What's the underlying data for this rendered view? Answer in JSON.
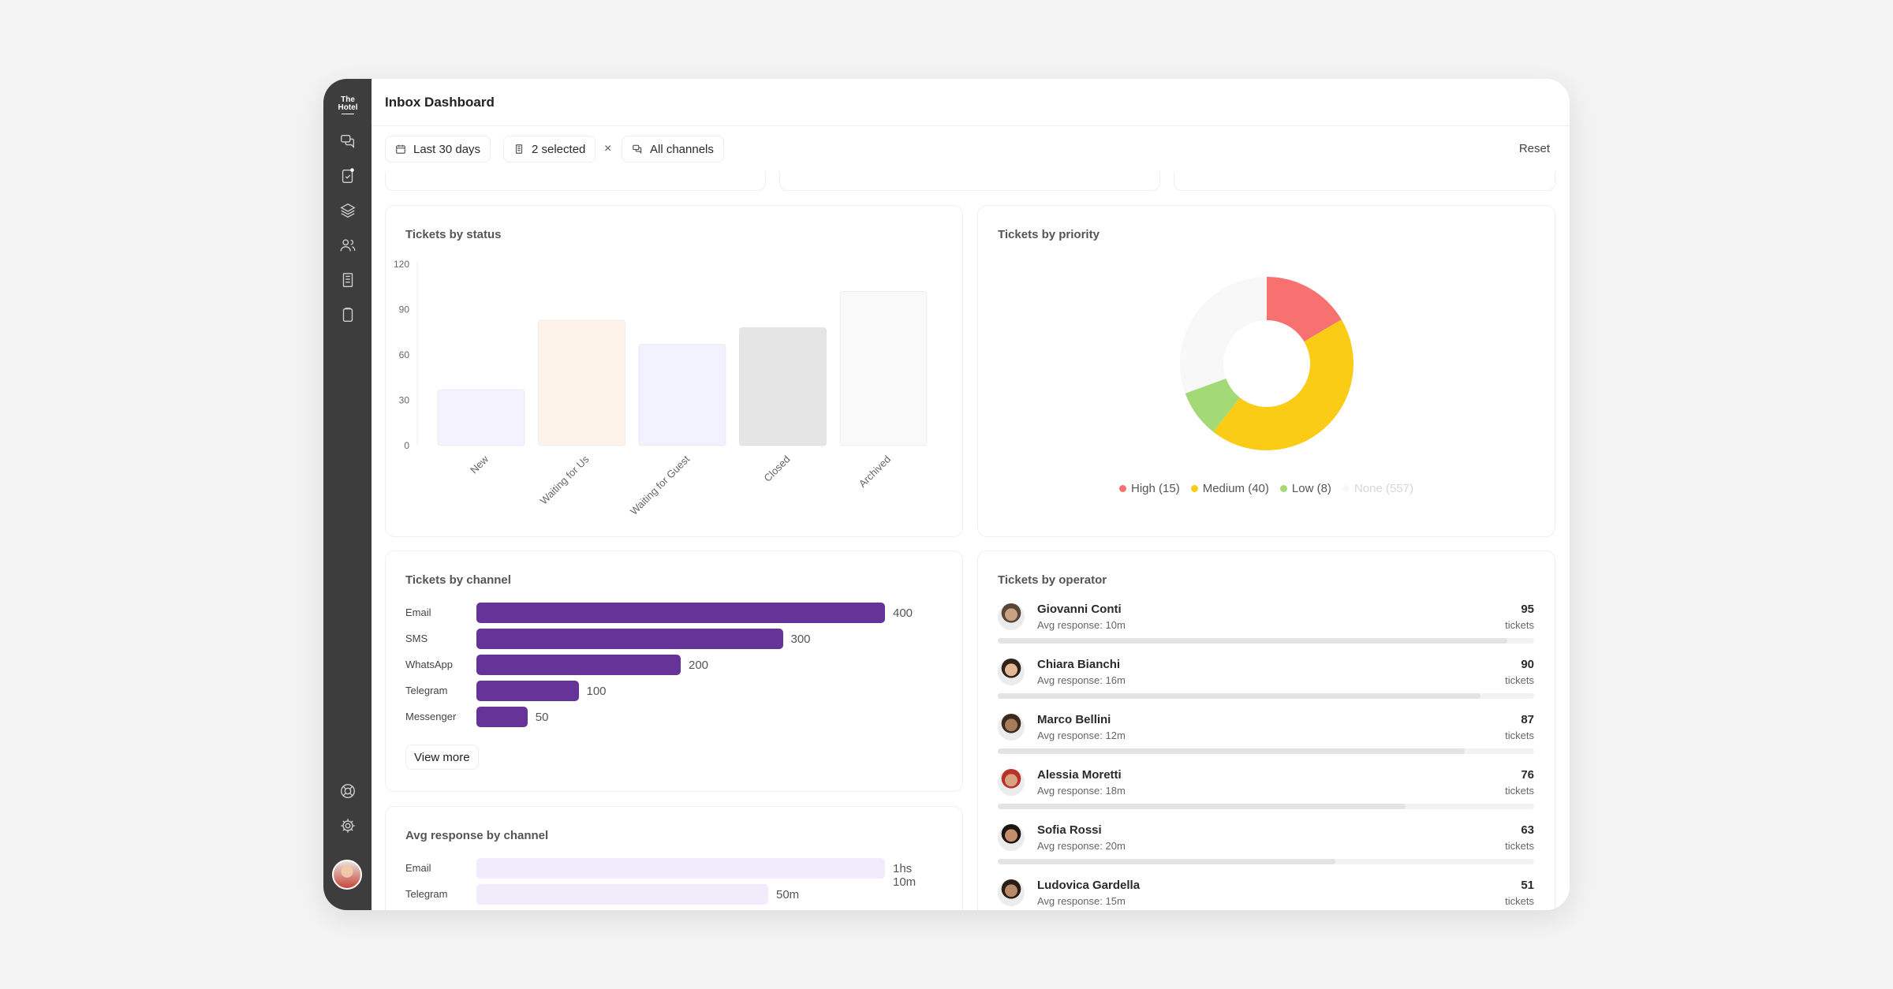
{
  "app": {
    "logo_text_1": "The",
    "logo_text_2": "Hotel",
    "title": "Inbox Dashboard"
  },
  "sidebar": {
    "items": [
      {
        "icon": "chat-bubbles-icon"
      },
      {
        "icon": "tasks-icon"
      },
      {
        "icon": "layers-icon"
      },
      {
        "icon": "users-icon"
      },
      {
        "icon": "building-icon"
      },
      {
        "icon": "clipboard-icon"
      },
      {
        "icon": "help-lifebuoy-icon"
      },
      {
        "icon": "gear-icon"
      }
    ]
  },
  "filters": {
    "date": "Last 30 days",
    "selected": "2 selected",
    "clear": "×",
    "channels": "All channels",
    "reset": "Reset"
  },
  "status_card": {
    "title": "Tickets by status"
  },
  "priority_card": {
    "title": "Tickets by priority"
  },
  "channel_card": {
    "title": "Tickets by channel",
    "view_more": "View more"
  },
  "response_card": {
    "title": "Avg response by channel"
  },
  "operator_card": {
    "title": "Tickets by operator",
    "unit": "tickets",
    "max": 100,
    "operators": [
      {
        "name": "Giovanni Conti",
        "avg": "Avg response: 10m",
        "count": 95,
        "count_label": "95"
      },
      {
        "name": "Chiara Bianchi",
        "avg": "Avg response: 16m",
        "count": 90,
        "count_label": "90"
      },
      {
        "name": "Marco Bellini",
        "avg": "Avg response: 12m",
        "count": 87,
        "count_label": "87"
      },
      {
        "name": "Alessia Moretti",
        "avg": "Avg response: 18m",
        "count": 76,
        "count_label": "76"
      },
      {
        "name": "Sofia Rossi",
        "avg": "Avg response: 20m",
        "count": 63,
        "count_label": "63"
      },
      {
        "name": "Ludovica Gardella",
        "avg": "Avg response: 15m",
        "count": 51,
        "count_label": "51"
      }
    ]
  },
  "chart_data": [
    {
      "type": "bar",
      "title": "Tickets by status",
      "categories": [
        "New",
        "Waiting for Us",
        "Waiting for Guest",
        "Closed",
        "Archived"
      ],
      "values": [
        37,
        83,
        67,
        78,
        102
      ],
      "colors": [
        "#f5f3ff",
        "#fdf3ea",
        "#f1f2fd",
        "#e5e5e5",
        "#f9f9f9"
      ],
      "yticks": [
        0,
        30,
        60,
        90,
        120
      ],
      "ylim": [
        0,
        120
      ],
      "grid": false
    },
    {
      "type": "pie",
      "title": "Tickets by priority",
      "donut": true,
      "slices": [
        {
          "label": "High",
          "display": "High (15)",
          "value": 15,
          "color": "#f87171"
        },
        {
          "label": "Medium",
          "display": "Medium (40)",
          "value": 40,
          "color": "#facc15"
        },
        {
          "label": "Low",
          "display": "Low (8)",
          "value": 8,
          "color": "#a3d977"
        },
        {
          "label": "None",
          "display": "None (557)",
          "value": 557,
          "color": "#f8f8f8"
        }
      ],
      "legend": "bottom"
    },
    {
      "type": "bar",
      "orientation": "horizontal",
      "title": "Tickets by channel",
      "categories": [
        "Email",
        "SMS",
        "WhatsApp",
        "Telegram",
        "Messenger"
      ],
      "values": [
        400,
        300,
        200,
        100,
        50
      ],
      "value_labels": [
        "400",
        "300",
        "200",
        "100",
        "50"
      ],
      "xlim": [
        0,
        400
      ],
      "color": "#663399"
    },
    {
      "type": "bar",
      "orientation": "horizontal",
      "title": "Avg response by channel",
      "categories": [
        "Email",
        "Telegram"
      ],
      "values": [
        70,
        50
      ],
      "value_labels": [
        "1hs 10m",
        "50m"
      ],
      "unit": "minutes",
      "xlim": [
        0,
        70
      ],
      "color": "#f1ebfc"
    }
  ]
}
